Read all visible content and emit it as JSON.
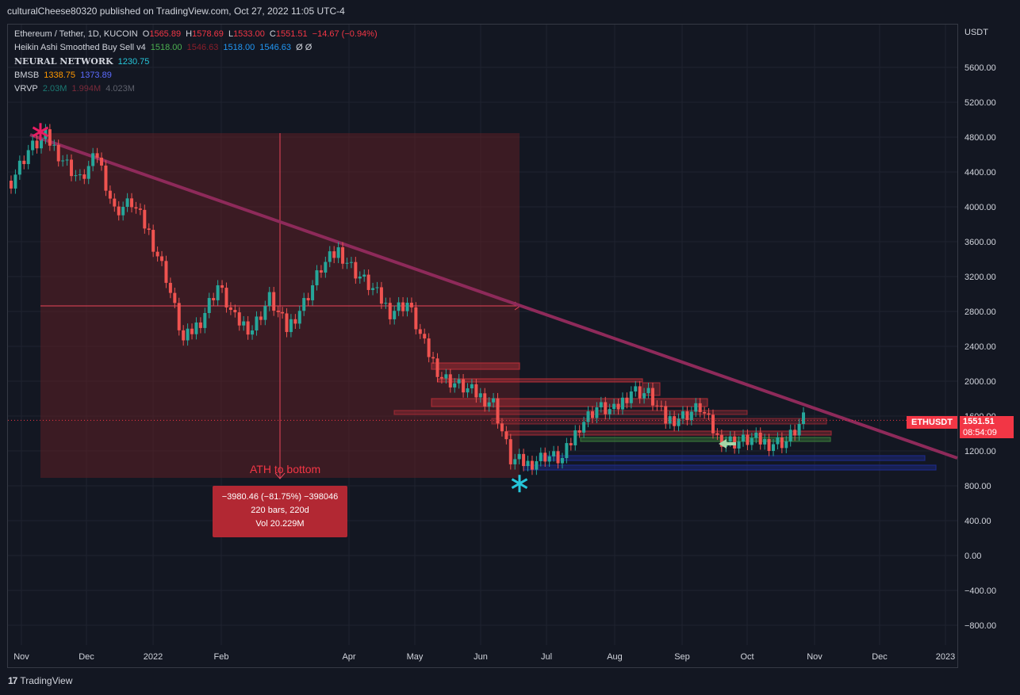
{
  "header": {
    "published": "culturalCheese80320 published on TradingView.com, Oct 27, 2022 11:05 UTC-4"
  },
  "legend": {
    "symbol": "Ethereum / Tether, 1D, KUCOIN",
    "o_label": "O",
    "o": "1565.89",
    "h_label": "H",
    "h": "1578.69",
    "l_label": "L",
    "l": "1533.00",
    "c_label": "C",
    "c": "1551.51",
    "change": "−14.67 (−0.94%)",
    "ha_name": "Heikin Ashi Smoothed Buy Sell v4",
    "ha_v1": "1518.00",
    "ha_v2": "1546.63",
    "ha_v3": "1518.00",
    "ha_v4": "1546.63",
    "ha_v5": "Ø  Ø",
    "nn_name": "NEURAL NETWORK",
    "nn_v": "1230.75",
    "bmsb_name": "BMSB",
    "bmsb_v1": "1338.75",
    "bmsb_v2": "1373.89",
    "vrvp_name": "VRVP",
    "vrvp_v1": "2.03M",
    "vrvp_v2": "1.994M",
    "vrvp_v3": "4.023M"
  },
  "annotations": {
    "ath_label": "ATH to bottom",
    "measure_line1": "−3980.46 (−81.75%) −398046",
    "measure_line2": "220 bars, 220d",
    "measure_line3": "Vol 20.229M"
  },
  "price_tags": {
    "symbol_tag": "ETHUSDT",
    "last_price": "1551.51",
    "countdown": "08:54:09"
  },
  "footer": {
    "logo_text": "TradingView"
  },
  "colors": {
    "background": "#131722",
    "up": "#26a69a",
    "down": "#ef5350",
    "trendline": "#8e2a5a",
    "measure_zone": "#5c1f25",
    "resistance": "#c0313a",
    "support_blue": "#1e2a8a",
    "support_green": "#3a7a3a"
  },
  "chart_data": {
    "type": "line",
    "title": "Ethereum / Tether, 1D, KUCOIN",
    "y_axis_unit": "USDT",
    "ylim": [
      -900,
      6100
    ],
    "y_ticks": [
      "5600.00",
      "5200.00",
      "4800.00",
      "4400.00",
      "4000.00",
      "3600.00",
      "3200.00",
      "2800.00",
      "2400.00",
      "2000.00",
      "1600.00",
      "1200.00",
      "800.00",
      "400.00",
      "0.00",
      "−400.00",
      "−800.00"
    ],
    "x_ticks": [
      "Nov",
      "Dec",
      "2022",
      "Feb",
      "Apr",
      "May",
      "Jun",
      "Jul",
      "Aug",
      "Sep",
      "Oct",
      "Nov",
      "Dec",
      "2023"
    ],
    "series": [
      {
        "values_approx_close_by_month": [
          {
            "x": "Nov",
            "y": 4300
          },
          {
            "x": "Nov",
            "y": 4650
          },
          {
            "x": "Nov",
            "y": 4800
          },
          {
            "x": "Nov",
            "y": 4550
          },
          {
            "x": "Dec",
            "y": 4300
          },
          {
            "x": "Dec",
            "y": 4600
          },
          {
            "x": "Dec",
            "y": 3950
          },
          {
            "x": "Dec",
            "y": 4050
          },
          {
            "x": "2022",
            "y": 3700
          },
          {
            "x": "2022",
            "y": 3200
          },
          {
            "x": "2022",
            "y": 2450
          },
          {
            "x": "Feb",
            "y": 2700
          },
          {
            "x": "Feb",
            "y": 3100
          },
          {
            "x": "Feb",
            "y": 2700
          },
          {
            "x": "Feb",
            "y": 2600
          },
          {
            "x": "Mar",
            "y": 2950
          },
          {
            "x": "Mar",
            "y": 2600
          },
          {
            "x": "Mar",
            "y": 2900
          },
          {
            "x": "Mar",
            "y": 3300
          },
          {
            "x": "Apr",
            "y": 3500
          },
          {
            "x": "Apr",
            "y": 3250
          },
          {
            "x": "Apr",
            "y": 3050
          },
          {
            "x": "Apr",
            "y": 2800
          },
          {
            "x": "May",
            "y": 2900
          },
          {
            "x": "May",
            "y": 2400
          },
          {
            "x": "May",
            "y": 2050
          },
          {
            "x": "May",
            "y": 1950
          },
          {
            "x": "Jun",
            "y": 1850
          },
          {
            "x": "Jun",
            "y": 1750
          },
          {
            "x": "Jun",
            "y": 1100
          },
          {
            "x": "Jun",
            "y": 1050
          },
          {
            "x": "Jul",
            "y": 1150
          },
          {
            "x": "Jul",
            "y": 1100
          },
          {
            "x": "Jul",
            "y": 1500
          },
          {
            "x": "Jul",
            "y": 1700
          },
          {
            "x": "Aug",
            "y": 1650
          },
          {
            "x": "Aug",
            "y": 1900
          },
          {
            "x": "Aug",
            "y": 1850
          },
          {
            "x": "Aug",
            "y": 1550
          },
          {
            "x": "Sep",
            "y": 1600
          },
          {
            "x": "Sep",
            "y": 1700
          },
          {
            "x": "Sep",
            "y": 1350
          },
          {
            "x": "Sep",
            "y": 1300
          },
          {
            "x": "Oct",
            "y": 1330
          },
          {
            "x": "Oct",
            "y": 1290
          },
          {
            "x": "Oct",
            "y": 1310
          },
          {
            "x": "Oct",
            "y": 1551.51
          }
        ]
      }
    ],
    "all_time_high": 4870,
    "bottom": 880,
    "last": 1551.51
  }
}
